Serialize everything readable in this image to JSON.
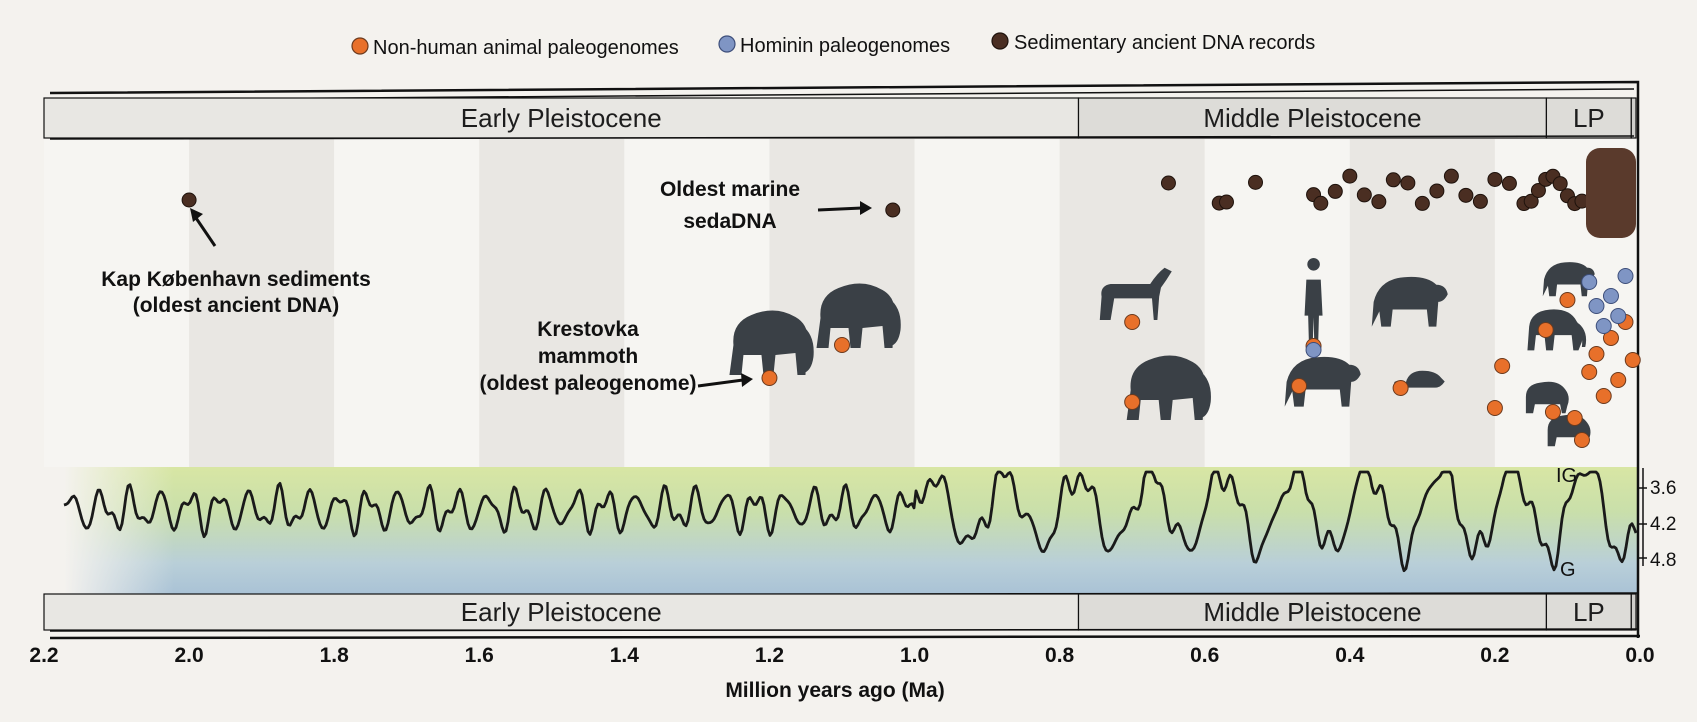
{
  "legend": {
    "items": [
      {
        "label": "Non-human animal paleogenomes",
        "color": "#e8702a"
      },
      {
        "label": "Hominin paleogenomes",
        "color": "#7f95c4"
      },
      {
        "label": "Sedimentary ancient DNA records",
        "color": "#4a2e22"
      }
    ]
  },
  "stages_top": [
    {
      "label": "Early Pleistocene",
      "from": 2.2,
      "to": 0.774
    },
    {
      "label": "Middle Pleistocene",
      "from": 0.774,
      "to": 0.129
    },
    {
      "label": "LP",
      "from": 0.129,
      "to": 0.012
    }
  ],
  "stages_bottom": [
    {
      "label": "Early Pleistocene",
      "from": 2.2,
      "to": 0.774
    },
    {
      "label": "Middle Pleistocene",
      "from": 0.774,
      "to": 0.129
    },
    {
      "label": "LP",
      "from": 0.129,
      "to": 0.012
    }
  ],
  "annotations": {
    "kap_line1": "Kap København sediments",
    "kap_line2": "(oldest ancient DNA)",
    "marine_line1": "Oldest marine",
    "marine_line2": "sedaDNA",
    "krest_line1": "Krestovka",
    "krest_line2": "mammoth",
    "krest_line3": "(oldest paleogenome)"
  },
  "isotope": {
    "ticks": [
      "3.6",
      "4.2",
      "4.8"
    ],
    "top_label": "IG",
    "bottom_label": "G"
  },
  "axis": {
    "title": "Million years ago (Ma)",
    "ticks": [
      "2.2",
      "2.0",
      "1.8",
      "1.6",
      "1.4",
      "1.2",
      "1.0",
      "0.8",
      "0.6",
      "0.4",
      "0.2",
      "0.0"
    ]
  },
  "chart_data": {
    "type": "scatter",
    "x_unit": "Ma",
    "xlim": [
      2.2,
      0.0
    ],
    "sedimentary_dna": [
      2.0,
      1.03,
      0.65,
      0.58,
      0.57,
      0.53,
      0.45,
      0.44,
      0.42,
      0.4,
      0.38,
      0.36,
      0.34,
      0.32,
      0.3,
      0.28,
      0.26,
      0.24,
      0.22,
      0.2,
      0.18,
      0.16,
      0.15,
      0.14,
      0.13,
      0.12,
      0.11,
      0.1,
      0.09,
      0.08,
      0.06,
      0.04,
      0.02
    ],
    "nonhuman_paleogenomes": [
      1.2,
      1.1,
      0.7,
      0.7,
      0.47,
      0.45,
      0.33,
      0.2,
      0.19,
      0.13,
      0.12,
      0.1,
      0.09,
      0.08,
      0.07,
      0.06,
      0.05,
      0.04,
      0.03,
      0.02,
      0.01
    ],
    "hominin_paleogenomes": [
      0.45,
      0.07,
      0.06,
      0.05,
      0.04,
      0.03,
      0.02
    ]
  },
  "animals": [
    {
      "kind": "mammoth",
      "age": 1.2
    },
    {
      "kind": "mammoth",
      "age": 1.08
    },
    {
      "kind": "horse",
      "age": 0.7
    },
    {
      "kind": "mammoth",
      "age": 0.68
    },
    {
      "kind": "hominin",
      "age": 0.45
    },
    {
      "kind": "bear",
      "age": 0.44
    },
    {
      "kind": "bear",
      "age": 0.32
    },
    {
      "kind": "rodent",
      "age": 0.3
    },
    {
      "kind": "bear",
      "age": 0.1
    },
    {
      "kind": "elephant",
      "age": 0.12
    },
    {
      "kind": "bison",
      "age": 0.13
    },
    {
      "kind": "bison",
      "age": 0.1
    }
  ]
}
